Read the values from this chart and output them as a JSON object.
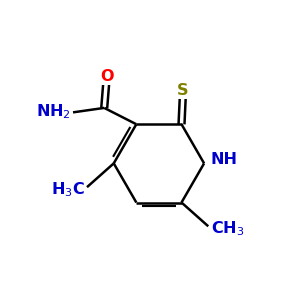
{
  "bg_color": "#ffffff",
  "bond_color": "#000000",
  "atom_colors": {
    "O": "#ff0000",
    "N": "#0000cc",
    "S": "#808000",
    "C": "#000000"
  }
}
